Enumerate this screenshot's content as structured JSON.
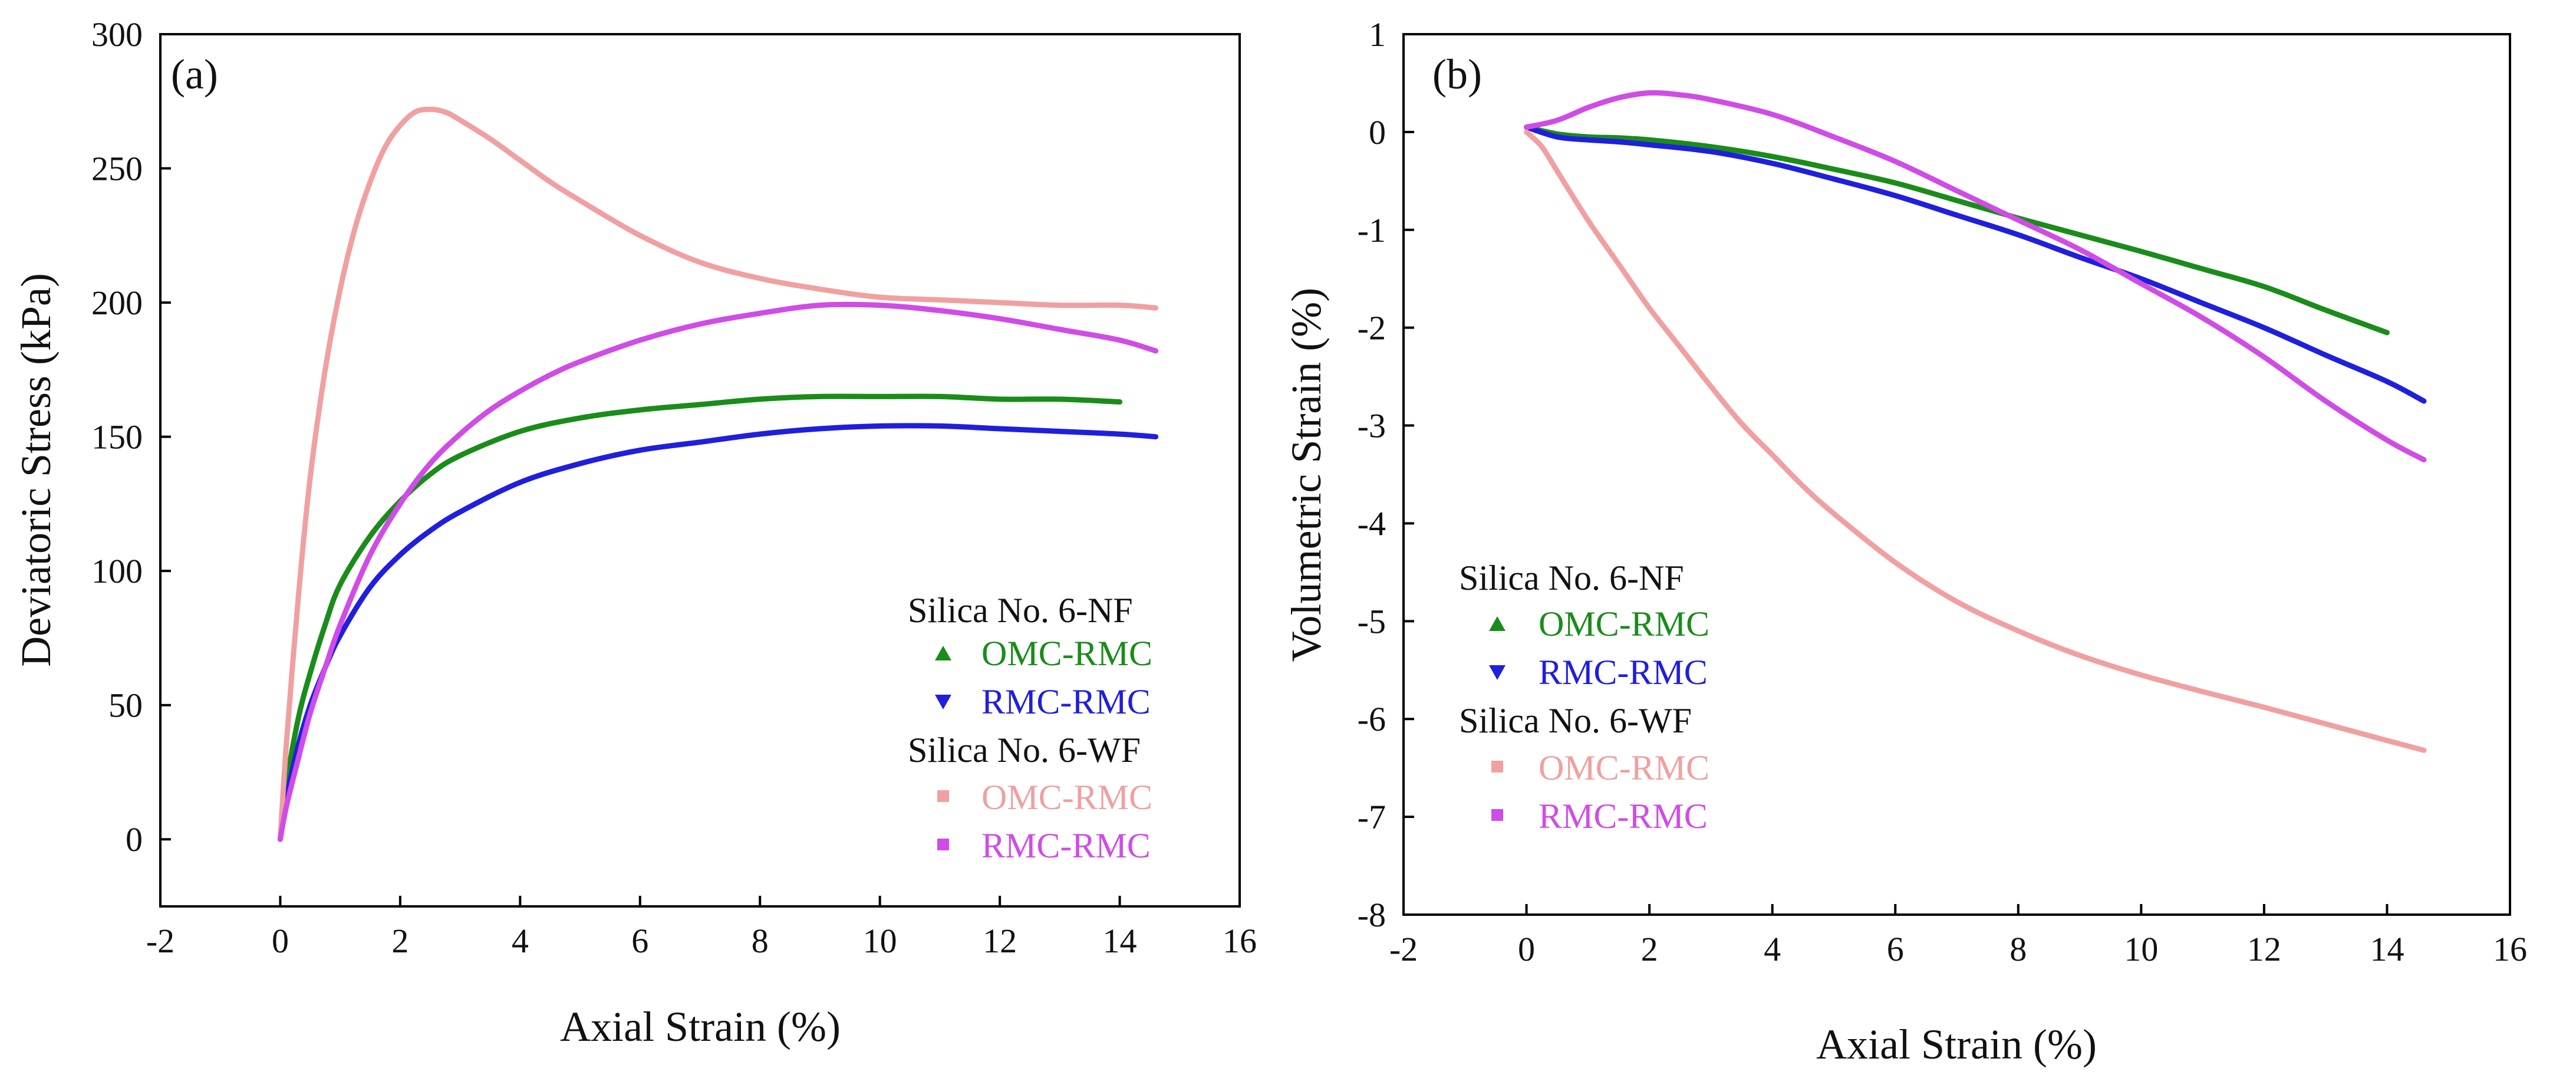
{
  "chart_data": [
    {
      "type": "line",
      "panel_label": "(a)",
      "xlabel": "Axial Strain (%)",
      "ylabel": "Deviatoric Stress (kPa)",
      "xlim": [
        -2,
        16
      ],
      "ylim": [
        -25,
        300
      ],
      "xticks": [
        -2,
        0,
        2,
        4,
        6,
        8,
        10,
        12,
        14,
        16
      ],
      "yticks": [
        0,
        50,
        100,
        150,
        200,
        250,
        300
      ],
      "legend_position": "bottom-right",
      "legend_groups": [
        {
          "title": "Silica No. 6-NF",
          "entries": [
            "OMC-RMC",
            "RMC-RMC"
          ]
        },
        {
          "title": "Silica No. 6-WF",
          "entries": [
            "OMC-RMC",
            "RMC-RMC"
          ]
        }
      ],
      "series": [
        {
          "group": "Silica No. 6-NF",
          "name": "OMC-RMC",
          "color": "#1a8c1a",
          "marker": "triangle-up",
          "x": [
            0,
            0.1,
            0.3,
            0.5,
            0.75,
            1,
            1.5,
            2,
            2.5,
            3,
            4,
            5,
            6,
            7,
            8,
            9,
            10,
            11,
            12,
            13,
            14
          ],
          "y": [
            0,
            20,
            45,
            62,
            80,
            95,
            113,
            126,
            136,
            143,
            152,
            157,
            160,
            162,
            164,
            165,
            165,
            165,
            164,
            164,
            163
          ]
        },
        {
          "group": "Silica No. 6-NF",
          "name": "RMC-RMC",
          "color": "#1f1fdd",
          "marker": "triangle-down",
          "x": [
            0,
            0.1,
            0.3,
            0.5,
            0.75,
            1,
            1.5,
            2,
            2.5,
            3,
            4,
            5,
            6,
            7,
            8,
            9,
            10,
            11,
            12,
            13,
            14,
            14.6
          ],
          "y": [
            0,
            15,
            35,
            50,
            64,
            76,
            94,
            106,
            115,
            122,
            133,
            140,
            145,
            148,
            151,
            153,
            154,
            154,
            153,
            152,
            151,
            150
          ]
        },
        {
          "group": "Silica No. 6-WF",
          "name": "OMC-RMC",
          "color": "#f0a0a0",
          "marker": "square",
          "x": [
            0,
            0.1,
            0.3,
            0.5,
            0.75,
            1,
            1.25,
            1.5,
            1.75,
            2,
            2.25,
            2.5,
            2.75,
            3,
            3.5,
            4,
            4.5,
            5,
            6,
            7,
            8,
            9,
            10,
            11,
            12,
            13,
            14,
            14.6
          ],
          "y": [
            0,
            35,
            90,
            135,
            175,
            205,
            228,
            245,
            258,
            266,
            271,
            272,
            271,
            268,
            261,
            253,
            245,
            238,
            225,
            215,
            209,
            205,
            202,
            201,
            200,
            199,
            199,
            198
          ]
        },
        {
          "group": "Silica No. 6-WF",
          "name": "RMC-RMC",
          "color": "#d04ce6",
          "marker": "square",
          "x": [
            0,
            0.1,
            0.3,
            0.5,
            0.75,
            1,
            1.5,
            2,
            2.5,
            3,
            3.5,
            4,
            4.5,
            5,
            6,
            7,
            8,
            9,
            10,
            11,
            12,
            13,
            14,
            14.6
          ],
          "y": [
            0,
            12,
            30,
            47,
            64,
            80,
            106,
            125,
            140,
            151,
            160,
            167,
            173,
            178,
            186,
            192,
            196,
            199,
            199,
            197,
            194,
            190,
            186,
            182
          ]
        }
      ]
    },
    {
      "type": "line",
      "panel_label": "(b)",
      "xlabel": "Axial Strain (%)",
      "ylabel": "Volumetric Strain (%)",
      "xlim": [
        -2,
        16
      ],
      "ylim": [
        -8,
        1
      ],
      "xticks": [
        -2,
        0,
        2,
        4,
        6,
        8,
        10,
        12,
        14,
        16
      ],
      "yticks": [
        1,
        0,
        -1,
        -2,
        -3,
        -4,
        -5,
        -6,
        -7,
        -8
      ],
      "legend_position": "bottom-left",
      "legend_groups": [
        {
          "title": "Silica No. 6-NF",
          "entries": [
            "OMC-RMC",
            "RMC-RMC"
          ]
        },
        {
          "title": "Silica No. 6-WF",
          "entries": [
            "OMC-RMC",
            "RMC-RMC"
          ]
        }
      ],
      "series": [
        {
          "group": "Silica No. 6-NF",
          "name": "OMC-RMC",
          "color": "#1a8c1a",
          "marker": "triangle-up",
          "x": [
            0,
            0.5,
            1,
            1.5,
            2,
            3,
            4,
            5,
            6,
            7,
            8,
            9,
            10,
            11,
            12,
            13,
            14
          ],
          "y": [
            0.05,
            -0.02,
            -0.05,
            -0.06,
            -0.08,
            -0.15,
            -0.25,
            -0.38,
            -0.52,
            -0.7,
            -0.88,
            -1.05,
            -1.22,
            -1.4,
            -1.58,
            -1.82,
            -2.05
          ]
        },
        {
          "group": "Silica No. 6-NF",
          "name": "RMC-RMC",
          "color": "#1f1fdd",
          "marker": "triangle-down",
          "x": [
            0,
            0.5,
            1,
            1.5,
            2,
            3,
            4,
            5,
            6,
            7,
            8,
            9,
            10,
            11,
            12,
            13,
            14,
            14.6
          ],
          "y": [
            0.05,
            -0.05,
            -0.08,
            -0.1,
            -0.13,
            -0.2,
            -0.32,
            -0.48,
            -0.65,
            -0.85,
            -1.05,
            -1.28,
            -1.5,
            -1.75,
            -2.0,
            -2.28,
            -2.55,
            -2.75
          ]
        },
        {
          "group": "Silica No. 6-WF",
          "name": "OMC-RMC",
          "color": "#f0a0a0",
          "marker": "square",
          "x": [
            0,
            0.25,
            0.5,
            1,
            1.5,
            2,
            2.5,
            3,
            3.5,
            4,
            4.5,
            5,
            6,
            7,
            8,
            9,
            10,
            11,
            12,
            13,
            14,
            14.6
          ],
          "y": [
            0,
            -0.15,
            -0.4,
            -0.9,
            -1.35,
            -1.8,
            -2.2,
            -2.6,
            -2.98,
            -3.3,
            -3.62,
            -3.9,
            -4.4,
            -4.8,
            -5.1,
            -5.35,
            -5.55,
            -5.72,
            -5.88,
            -6.05,
            -6.22,
            -6.32
          ]
        },
        {
          "group": "Silica No. 6-WF",
          "name": "RMC-RMC",
          "color": "#d04ce6",
          "marker": "square",
          "x": [
            0,
            0.5,
            1,
            1.5,
            2,
            2.5,
            3,
            4,
            5,
            6,
            7,
            8,
            9,
            10,
            11,
            12,
            13,
            14,
            14.6
          ],
          "y": [
            0.05,
            0.12,
            0.25,
            0.35,
            0.4,
            0.38,
            0.33,
            0.18,
            -0.05,
            -0.3,
            -0.6,
            -0.9,
            -1.2,
            -1.55,
            -1.9,
            -2.3,
            -2.75,
            -3.15,
            -3.35
          ]
        }
      ]
    }
  ]
}
